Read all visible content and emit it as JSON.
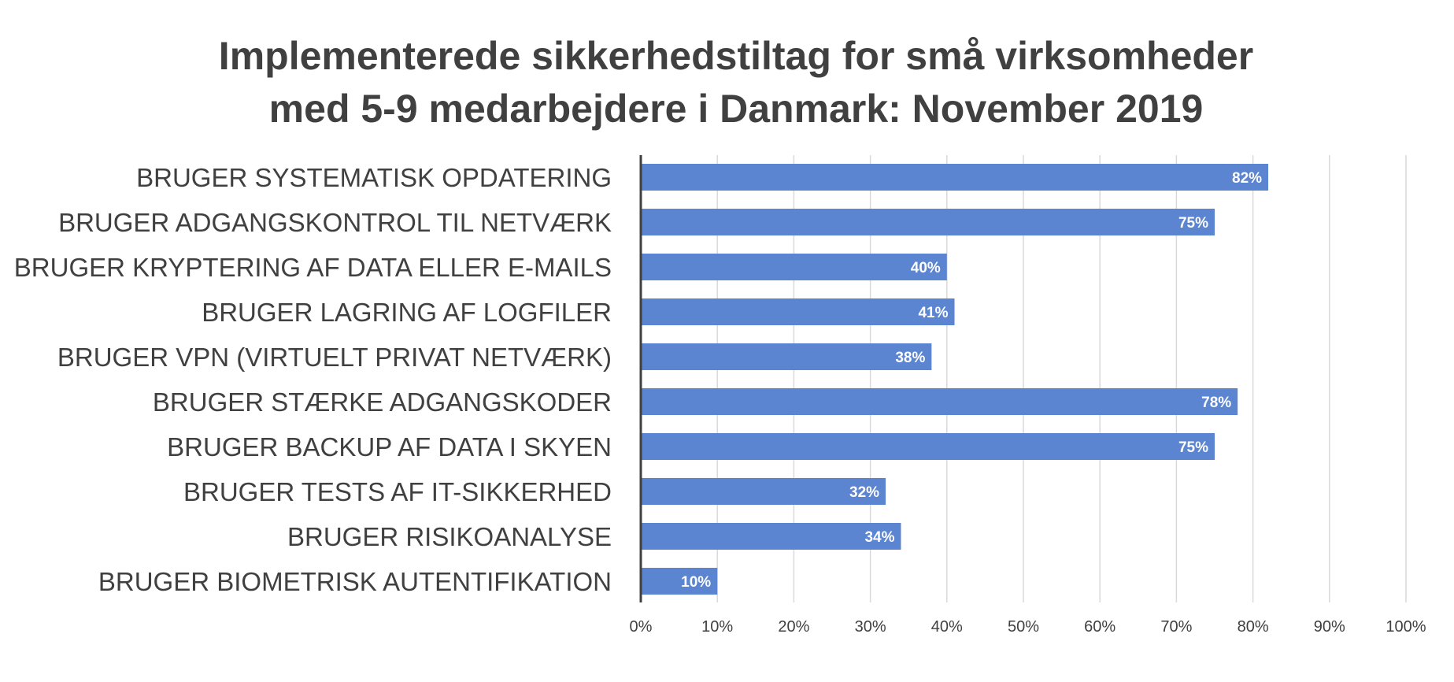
{
  "chart_data": {
    "type": "bar",
    "orientation": "horizontal",
    "title": [
      "Implementerede sikkerhedstiltag for små virksomheder",
      "med 5-9 medarbejdere i Danmark: November 2019"
    ],
    "categories": [
      "BRUGER SYSTEMATISK OPDATERING",
      "BRUGER ADGANGSKONTROL TIL NETVÆRK",
      "BRUGER KRYPTERING AF DATA ELLER E-MAILS",
      "BRUGER LAGRING AF LOGFILER",
      "BRUGER VPN (VIRTUELT PRIVAT NETVÆRK)",
      "BRUGER STÆRKE ADGANGSKODER",
      "BRUGER BACKUP AF DATA I SKYEN",
      "BRUGER TESTS AF IT-SIKKERHED",
      "BRUGER RISIKOANALYSE",
      "BRUGER BIOMETRISK AUTENTIFIKATION"
    ],
    "values": [
      82,
      75,
      40,
      41,
      38,
      78,
      75,
      32,
      34,
      10
    ],
    "value_labels": [
      "82%",
      "75%",
      "40%",
      "41%",
      "38%",
      "78%",
      "75%",
      "32%",
      "34%",
      "10%"
    ],
    "xlim": [
      0,
      100
    ],
    "x_ticks": [
      0,
      10,
      20,
      30,
      40,
      50,
      60,
      70,
      80,
      90,
      100
    ],
    "x_tick_labels": [
      "0%",
      "10%",
      "20%",
      "30%",
      "40%",
      "50%",
      "60%",
      "70%",
      "80%",
      "90%",
      "100%"
    ],
    "xlabel": "",
    "ylabel": "",
    "grid": true,
    "legend": "none",
    "bar_color": "#5b84d1",
    "text_color": "#404040",
    "grid_color": "#d9d9d9"
  }
}
